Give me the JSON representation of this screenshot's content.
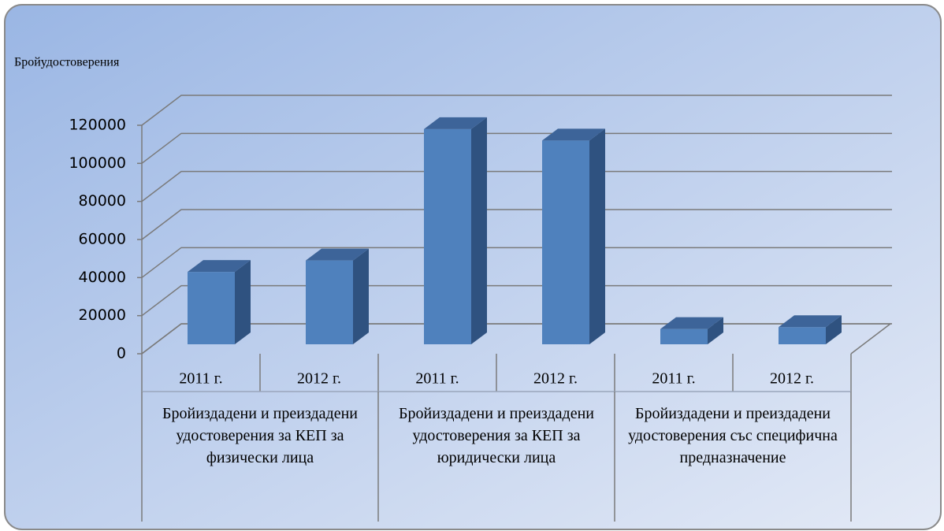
{
  "chart_data": {
    "type": "bar3d",
    "y_axis_label": "Бройудостоверения",
    "categories": [
      "2011 г.",
      "2012 г.",
      "2011 г.",
      "2012 г.",
      "2011 г.",
      "2012 г."
    ],
    "groups": [
      "Бройиздадени и преиздадени удостоверения за КЕП за физически лица",
      "Бройиздадени и преиздадени удостоверения за КЕП за юридически лица",
      "Бройиздадени и преиздадени удостоверения със специфична предназначение"
    ],
    "values": [
      38000,
      44000,
      113000,
      107000,
      8000,
      9000
    ],
    "color": "#4f81bd",
    "ylim": [
      0,
      120000
    ],
    "yticks": [
      0,
      20000,
      40000,
      60000,
      80000,
      100000,
      120000
    ],
    "grid": true
  }
}
